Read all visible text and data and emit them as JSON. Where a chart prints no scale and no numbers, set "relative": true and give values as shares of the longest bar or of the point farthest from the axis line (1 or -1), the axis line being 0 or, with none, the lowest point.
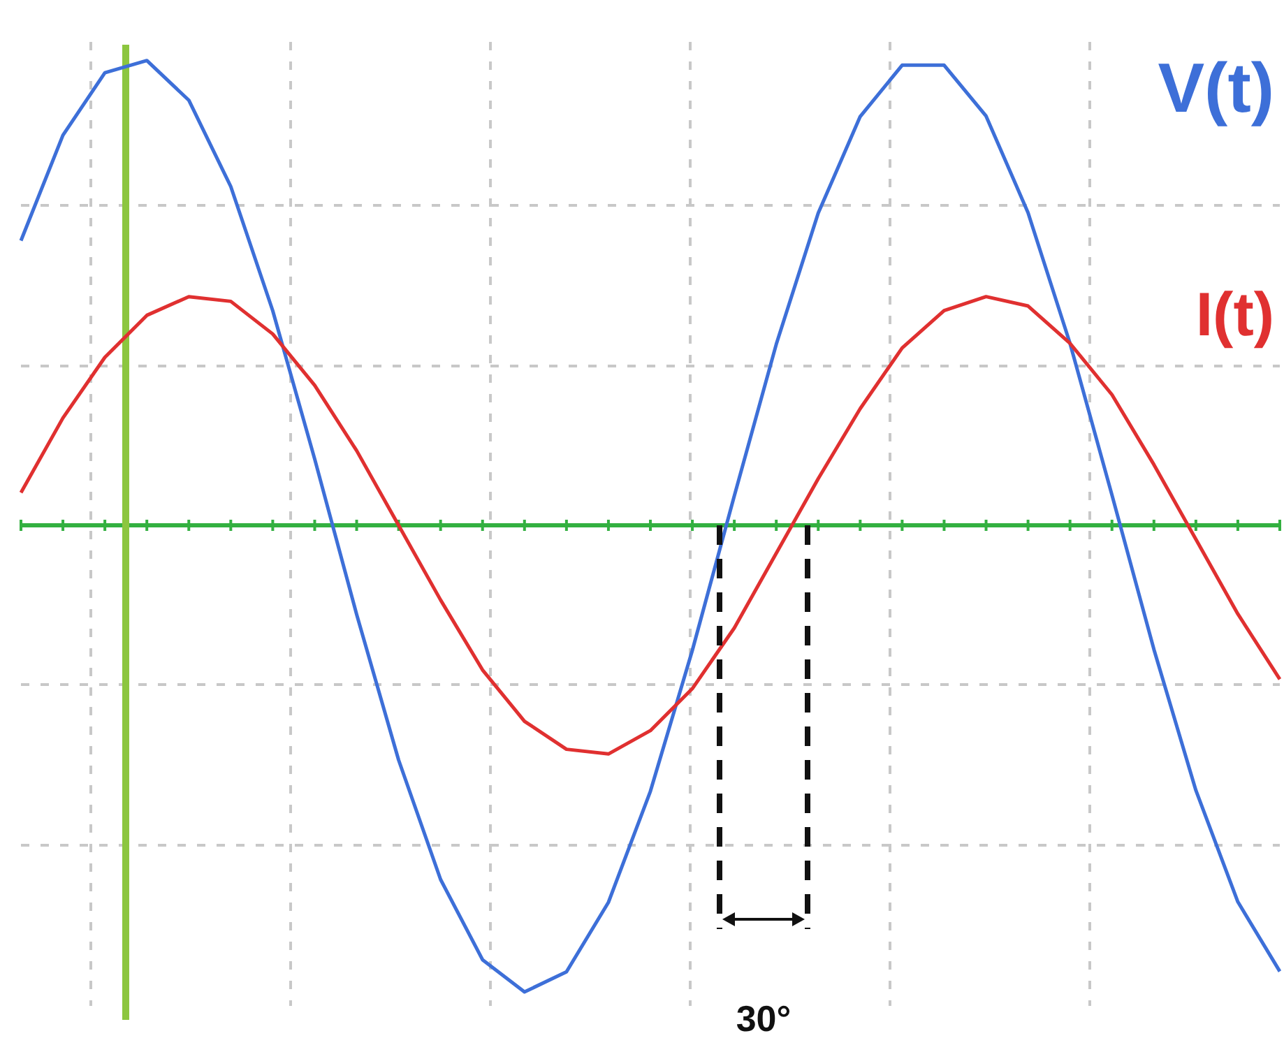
{
  "chart_data": {
    "type": "line",
    "relative": true,
    "categories": [
      null,
      null,
      null,
      null,
      null,
      null,
      null,
      null,
      null,
      null,
      null,
      null,
      null,
      null,
      null,
      null,
      null,
      null,
      null,
      null,
      null,
      null,
      null,
      null,
      null,
      null,
      null,
      null,
      null,
      null,
      null
    ],
    "grid": true,
    "series": [
      {
        "name": "V(t)",
        "color": "#3d6fd8",
        "values": [
          0.61,
          0.836,
          0.97,
          0.996,
          0.911,
          0.726,
          0.46,
          0.142,
          -0.191,
          -0.503,
          -0.759,
          -0.931,
          -1,
          -0.957,
          -0.808,
          -0.57,
          -0.268,
          0.063,
          0.388,
          0.669,
          0.876,
          0.986,
          0.986,
          0.877,
          0.67,
          0.39,
          0.065,
          -0.266,
          -0.568,
          -0.807,
          -0.956
        ]
      },
      {
        "name": "I(t)",
        "color": "#e03030",
        "values": [
          0.07,
          0.23,
          0.36,
          0.45,
          0.49,
          0.48,
          0.41,
          0.3,
          0.16,
          0,
          -0.16,
          -0.31,
          -0.42,
          -0.48,
          -0.49,
          -0.44,
          -0.35,
          -0.22,
          -0.06,
          0.1,
          0.25,
          0.38,
          0.46,
          0.49,
          0.47,
          0.39,
          0.28,
          0.13,
          -0.03,
          -0.19,
          -0.33
        ]
      }
    ],
    "ref_lines": [
      {
        "axis": "y",
        "value": 0,
        "color": "#33b040"
      }
    ],
    "annotations": [
      "30°"
    ]
  }
}
